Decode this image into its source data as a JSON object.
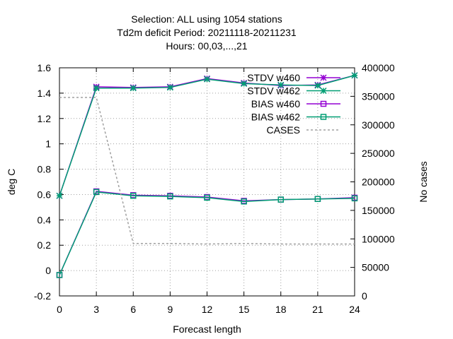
{
  "chart_data": {
    "type": "line",
    "title_lines": [
      "Selection: ALL using  1054 stations",
      "Td2m deficit   Period: 20211118-20211231",
      "Hours:  00,03,...,21"
    ],
    "xlabel": "Forecast length",
    "ylabel": "deg C",
    "y2label": "No cases",
    "x": [
      0,
      3,
      6,
      9,
      12,
      15,
      18,
      21,
      24
    ],
    "xlim": [
      0,
      24
    ],
    "ylim": [
      -0.2,
      1.6
    ],
    "y2lim": [
      0,
      400000
    ],
    "xticks": [
      "0",
      "3",
      "6",
      "9",
      "12",
      "15",
      "18",
      "21",
      "24"
    ],
    "yticks": [
      "-0.2",
      "0",
      "0.2",
      "0.4",
      "0.6",
      "0.8",
      "1",
      "1.2",
      "1.4",
      "1.6"
    ],
    "y2ticks": [
      "0",
      "50000",
      "100000",
      "150000",
      "200000",
      "250000",
      "300000",
      "350000",
      "400000"
    ],
    "grid": true,
    "legend_position": "top-right",
    "series": [
      {
        "name": "STDV w460",
        "axis": "y",
        "color": "#9400d3",
        "marker": "star",
        "values": [
          0.59,
          1.45,
          1.445,
          1.45,
          1.515,
          1.48,
          1.46,
          1.465,
          1.54
        ]
      },
      {
        "name": "STDV w462",
        "axis": "y",
        "color": "#009e73",
        "marker": "star",
        "values": [
          0.59,
          1.44,
          1.44,
          1.445,
          1.51,
          1.475,
          1.465,
          1.46,
          1.54
        ]
      },
      {
        "name": "BIAS w460",
        "axis": "y",
        "color": "#9400d3",
        "marker": "square",
        "values": [
          -0.035,
          0.625,
          0.595,
          0.59,
          0.58,
          0.55,
          0.56,
          0.565,
          0.575
        ]
      },
      {
        "name": "BIAS w462",
        "axis": "y",
        "color": "#009e73",
        "marker": "square",
        "values": [
          -0.035,
          0.62,
          0.59,
          0.585,
          0.575,
          0.545,
          0.56,
          0.565,
          0.57
        ]
      },
      {
        "name": "CASES",
        "axis": "y2",
        "color": "#a0a0a0",
        "marker": "none",
        "dash": true,
        "values": [
          348000,
          348000,
          92000,
          92000,
          91000,
          92000,
          91000,
          91000,
          91000
        ]
      }
    ]
  }
}
